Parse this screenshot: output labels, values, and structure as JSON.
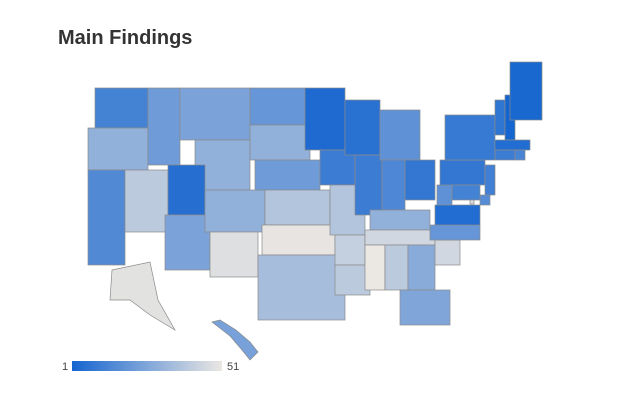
{
  "title": "Main Findings",
  "map": {
    "values": [
      12,
      30,
      15,
      40,
      22,
      25,
      30,
      5,
      25,
      30,
      48,
      20,
      30,
      22,
      38,
      50,
      35,
      3,
      10,
      38,
      42,
      40,
      6,
      10,
      18,
      14,
      8,
      30,
      45,
      51,
      40,
      28,
      26,
      45,
      20,
      18,
      4,
      8,
      9,
      11,
      16,
      12,
      47,
      7,
      1,
      2,
      4,
      10,
      13,
      49,
      24
    ],
    "scale": {
      "min": 1,
      "max": 51,
      "low_color": "#1565d0",
      "high_color": "#ebe7e2"
    }
  }
}
